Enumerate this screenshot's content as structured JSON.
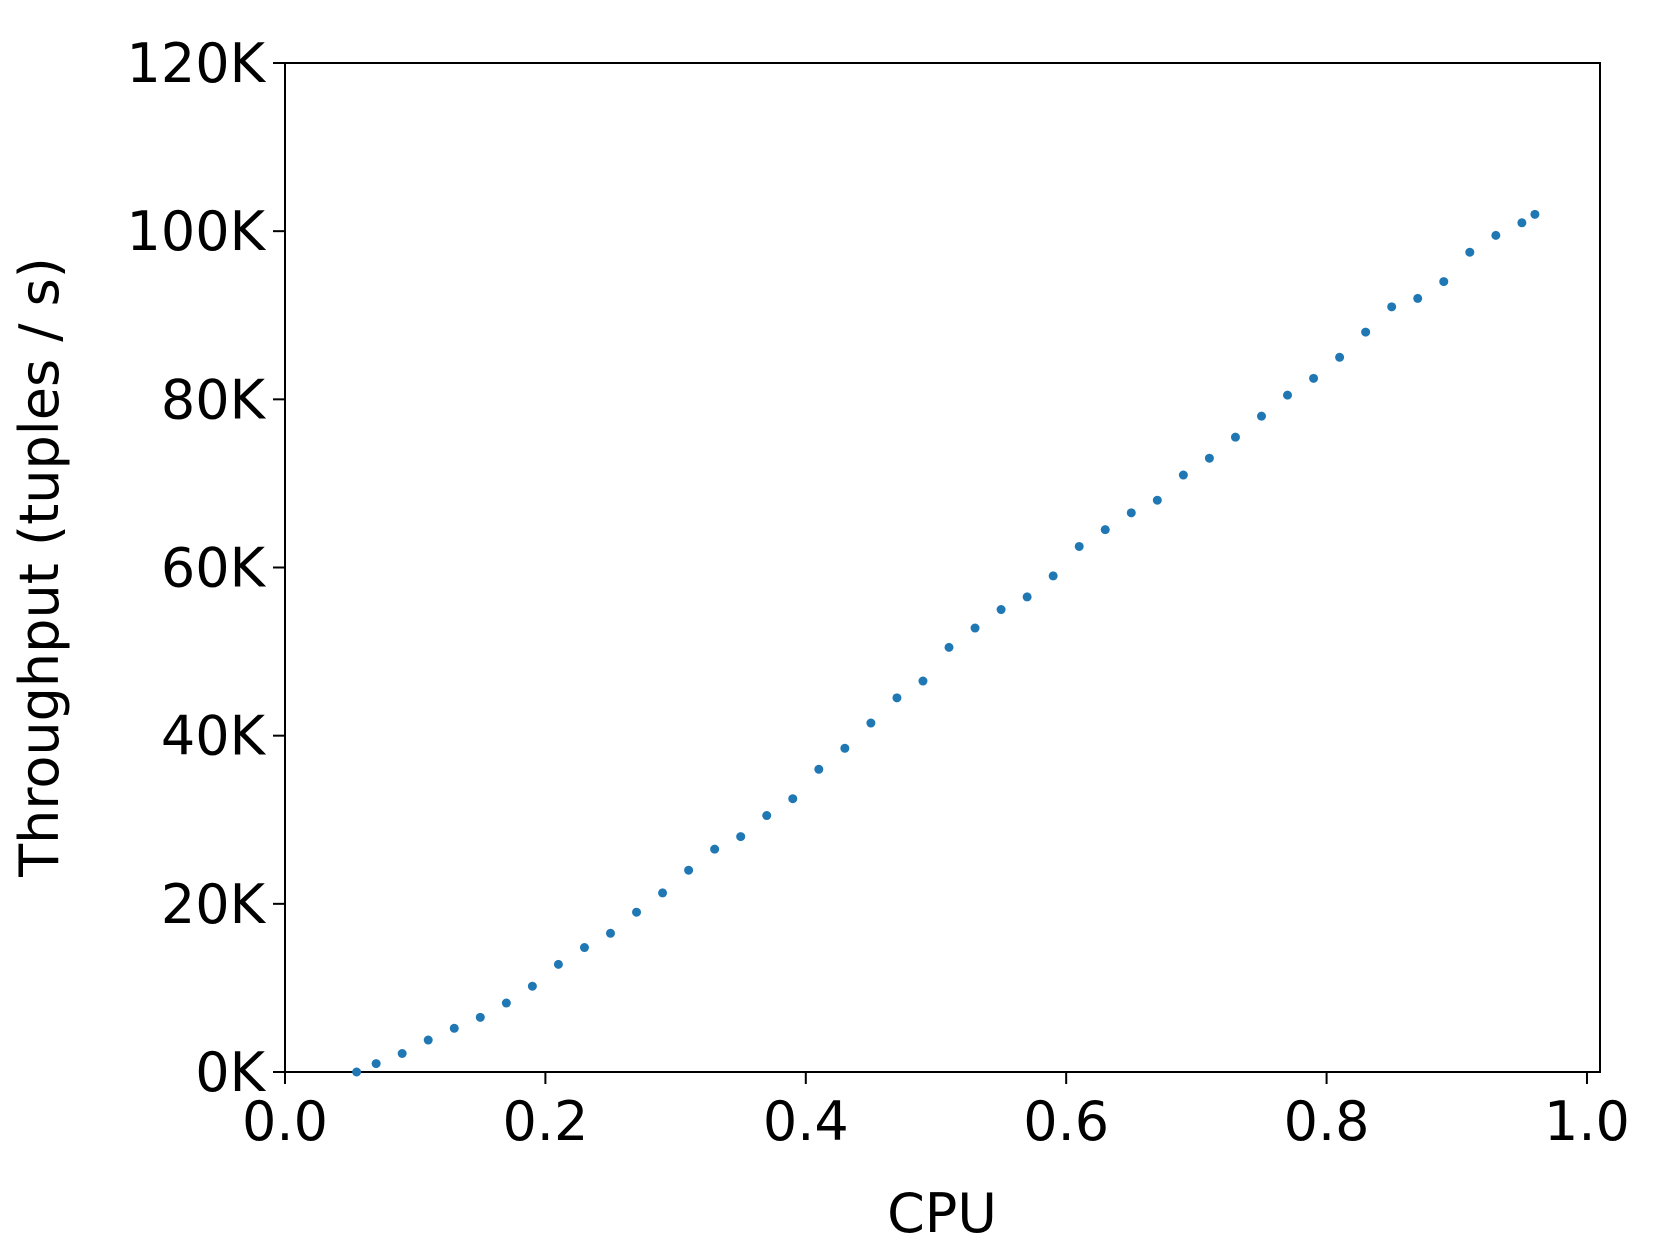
{
  "chart_data": {
    "type": "scatter",
    "x_label": "CPU",
    "y_label": "Throughput (tuples / s)",
    "series": [
      {
        "color": "#1f77b4",
        "x": [
          0.055,
          0.07,
          0.09,
          0.11,
          0.13,
          0.15,
          0.17,
          0.19,
          0.21,
          0.23,
          0.25,
          0.27,
          0.29,
          0.31,
          0.33,
          0.35,
          0.37,
          0.39,
          0.41,
          0.43,
          0.45,
          0.47,
          0.49,
          0.51,
          0.53,
          0.55,
          0.57,
          0.59,
          0.61,
          0.63,
          0.65,
          0.67,
          0.69,
          0.71,
          0.73,
          0.75,
          0.77,
          0.79,
          0.81,
          0.83,
          0.85,
          0.87,
          0.89,
          0.91,
          0.93,
          0.95,
          0.96
        ],
        "values": [
          0,
          1000,
          2200,
          3800,
          5200,
          6500,
          8200,
          10200,
          12800,
          14800,
          16500,
          19000,
          21300,
          24000,
          26500,
          28000,
          30500,
          32500,
          36000,
          38500,
          41500,
          44500,
          46500,
          50500,
          52800,
          55000,
          56500,
          59000,
          62500,
          64500,
          66500,
          68000,
          71000,
          73000,
          75500,
          78000,
          80500,
          82500,
          85000,
          88000,
          91000,
          92000,
          94000,
          97500,
          99500,
          101000,
          102000
        ]
      }
    ],
    "xlim": [
      0,
      1.01
    ],
    "xticks": [
      {
        "value": 0,
        "label": "0.0"
      },
      0.2,
      0.4,
      0.6,
      0.8,
      {
        "value": 1,
        "label": "1.0"
      }
    ],
    "ylim": [
      0,
      120000
    ],
    "yticks": [
      {
        "value": 0,
        "label": "0K"
      },
      {
        "value": 20000,
        "label": "20K"
      },
      {
        "value": 40000,
        "label": "40K"
      },
      {
        "value": 60000,
        "label": "60K"
      },
      {
        "value": 80000,
        "label": "80K"
      },
      {
        "value": 100000,
        "label": "100K"
      },
      {
        "value": 120000,
        "label": "120K"
      }
    ]
  }
}
